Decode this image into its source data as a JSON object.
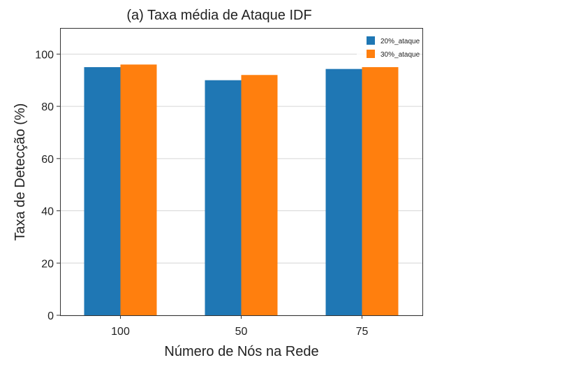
{
  "chart_data": {
    "type": "bar",
    "title": "(a) Taxa média de Ataque IDF",
    "xlabel": "Número de Nós na Rede",
    "ylabel": "Taxa de Detecção (%)",
    "categories": [
      "100",
      "50",
      "75"
    ],
    "series": [
      {
        "name": "20%_ataque",
        "values": [
          95,
          90,
          94.3
        ],
        "color": "#1f77b4"
      },
      {
        "name": "30%_ataque",
        "values": [
          96,
          92,
          95
        ],
        "color": "#ff7f0e"
      }
    ],
    "ylim": [
      0,
      110
    ],
    "yticks": [
      "0",
      "20",
      "40",
      "60",
      "80",
      "100"
    ],
    "grid": "horizontal",
    "legend_position": "top-right"
  }
}
